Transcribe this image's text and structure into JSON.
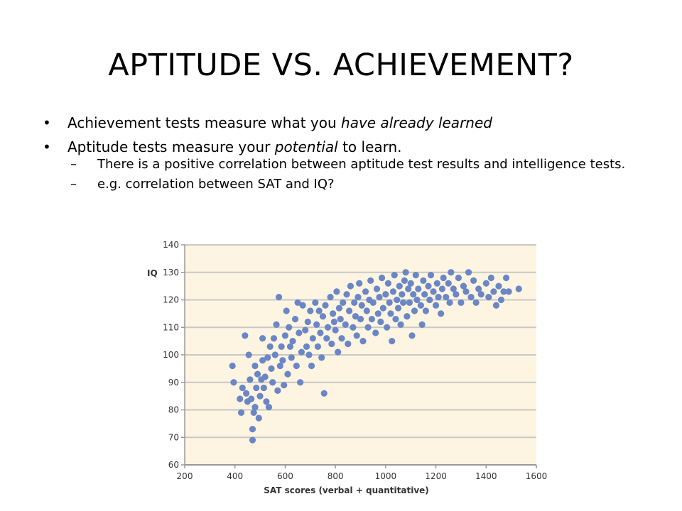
{
  "slide": {
    "title": "APTITUDE VS. ACHIEVEMENT?",
    "bullets": [
      {
        "pre": "Achievement tests measure what you ",
        "em": "have already learned",
        "post": ""
      },
      {
        "pre": "Aptitude tests measure your ",
        "em": "potential",
        "post": " to learn."
      }
    ],
    "sub_bullets": [
      "There is a positive correlation between aptitude test results and intelligence tests.",
      "e.g. correlation between SAT and IQ?"
    ]
  },
  "chart_data": {
    "type": "scatter",
    "xlabel": "SAT scores (verbal + quantitative)",
    "ylabel": "IQ",
    "xlim": [
      200,
      1600
    ],
    "ylim": [
      60,
      140
    ],
    "xticks": [
      200,
      400,
      600,
      800,
      1000,
      1200,
      1400,
      1600
    ],
    "yticks": [
      60,
      70,
      80,
      90,
      100,
      110,
      120,
      130,
      140
    ],
    "grid": "horizontal",
    "colors": {
      "point": "#6b86c6",
      "background": "#fdf5e1",
      "grid": "#c8c8c8",
      "axis": "#999999"
    },
    "points": [
      [
        390,
        96
      ],
      [
        395,
        90
      ],
      [
        420,
        84
      ],
      [
        425,
        79
      ],
      [
        430,
        88
      ],
      [
        440,
        107
      ],
      [
        445,
        86
      ],
      [
        450,
        83
      ],
      [
        455,
        100
      ],
      [
        460,
        91
      ],
      [
        465,
        84
      ],
      [
        470,
        73
      ],
      [
        470,
        69
      ],
      [
        475,
        79
      ],
      [
        480,
        96
      ],
      [
        480,
        81
      ],
      [
        485,
        88
      ],
      [
        490,
        93
      ],
      [
        495,
        77
      ],
      [
        500,
        85
      ],
      [
        505,
        91
      ],
      [
        510,
        98
      ],
      [
        510,
        106
      ],
      [
        515,
        88
      ],
      [
        520,
        92
      ],
      [
        525,
        83
      ],
      [
        530,
        99
      ],
      [
        535,
        81
      ],
      [
        540,
        103
      ],
      [
        545,
        95
      ],
      [
        550,
        90
      ],
      [
        555,
        106
      ],
      [
        560,
        100
      ],
      [
        565,
        111
      ],
      [
        570,
        87
      ],
      [
        575,
        121
      ],
      [
        580,
        96
      ],
      [
        585,
        103
      ],
      [
        590,
        98
      ],
      [
        595,
        89
      ],
      [
        600,
        107
      ],
      [
        605,
        116
      ],
      [
        610,
        93
      ],
      [
        615,
        110
      ],
      [
        620,
        103
      ],
      [
        625,
        99
      ],
      [
        630,
        105
      ],
      [
        640,
        113
      ],
      [
        645,
        96
      ],
      [
        650,
        119
      ],
      [
        655,
        108
      ],
      [
        660,
        90
      ],
      [
        665,
        101
      ],
      [
        670,
        118
      ],
      [
        680,
        109
      ],
      [
        685,
        103
      ],
      [
        690,
        112
      ],
      [
        695,
        100
      ],
      [
        700,
        116
      ],
      [
        705,
        96
      ],
      [
        710,
        106
      ],
      [
        720,
        119
      ],
      [
        725,
        111
      ],
      [
        730,
        103
      ],
      [
        735,
        116
      ],
      [
        740,
        108
      ],
      [
        745,
        99
      ],
      [
        750,
        114
      ],
      [
        755,
        86
      ],
      [
        760,
        118
      ],
      [
        765,
        106
      ],
      [
        770,
        110
      ],
      [
        780,
        121
      ],
      [
        785,
        104
      ],
      [
        790,
        115
      ],
      [
        795,
        112
      ],
      [
        800,
        109
      ],
      [
        805,
        123
      ],
      [
        810,
        101
      ],
      [
        815,
        117
      ],
      [
        820,
        113
      ],
      [
        825,
        106
      ],
      [
        830,
        119
      ],
      [
        840,
        111
      ],
      [
        845,
        122
      ],
      [
        850,
        104
      ],
      [
        855,
        116
      ],
      [
        860,
        125
      ],
      [
        870,
        110
      ],
      [
        875,
        119
      ],
      [
        880,
        114
      ],
      [
        885,
        107
      ],
      [
        890,
        121
      ],
      [
        895,
        126
      ],
      [
        900,
        113
      ],
      [
        905,
        118
      ],
      [
        910,
        105
      ],
      [
        920,
        123
      ],
      [
        925,
        116
      ],
      [
        930,
        110
      ],
      [
        935,
        120
      ],
      [
        940,
        127
      ],
      [
        945,
        113
      ],
      [
        950,
        119
      ],
      [
        960,
        108
      ],
      [
        965,
        124
      ],
      [
        970,
        115
      ],
      [
        975,
        121
      ],
      [
        980,
        112
      ],
      [
        985,
        128
      ],
      [
        990,
        117
      ],
      [
        1000,
        122
      ],
      [
        1005,
        110
      ],
      [
        1010,
        126
      ],
      [
        1015,
        119
      ],
      [
        1020,
        115
      ],
      [
        1025,
        105
      ],
      [
        1030,
        123
      ],
      [
        1035,
        129
      ],
      [
        1040,
        113
      ],
      [
        1045,
        120
      ],
      [
        1050,
        117
      ],
      [
        1055,
        125
      ],
      [
        1060,
        111
      ],
      [
        1065,
        122
      ],
      [
        1070,
        119
      ],
      [
        1075,
        127
      ],
      [
        1080,
        130
      ],
      [
        1085,
        114
      ],
      [
        1090,
        124
      ],
      [
        1095,
        119
      ],
      [
        1100,
        126
      ],
      [
        1105,
        107
      ],
      [
        1110,
        122
      ],
      [
        1115,
        116
      ],
      [
        1120,
        129
      ],
      [
        1125,
        120
      ],
      [
        1130,
        124
      ],
      [
        1140,
        118
      ],
      [
        1145,
        111
      ],
      [
        1150,
        127
      ],
      [
        1155,
        122
      ],
      [
        1160,
        116
      ],
      [
        1170,
        125
      ],
      [
        1175,
        120
      ],
      [
        1180,
        129
      ],
      [
        1190,
        123
      ],
      [
        1200,
        118
      ],
      [
        1205,
        126
      ],
      [
        1210,
        121
      ],
      [
        1220,
        115
      ],
      [
        1225,
        124
      ],
      [
        1230,
        128
      ],
      [
        1240,
        121
      ],
      [
        1250,
        126
      ],
      [
        1255,
        119
      ],
      [
        1260,
        130
      ],
      [
        1270,
        124
      ],
      [
        1280,
        122
      ],
      [
        1290,
        128
      ],
      [
        1300,
        119
      ],
      [
        1310,
        125
      ],
      [
        1320,
        123
      ],
      [
        1330,
        130
      ],
      [
        1340,
        121
      ],
      [
        1350,
        127
      ],
      [
        1360,
        119
      ],
      [
        1370,
        124
      ],
      [
        1380,
        122
      ],
      [
        1400,
        126
      ],
      [
        1410,
        121
      ],
      [
        1420,
        128
      ],
      [
        1430,
        123
      ],
      [
        1450,
        125
      ],
      [
        1460,
        120
      ],
      [
        1470,
        123
      ],
      [
        1480,
        128
      ],
      [
        1490,
        123
      ],
      [
        1530,
        124
      ],
      [
        1440,
        118
      ]
    ]
  }
}
